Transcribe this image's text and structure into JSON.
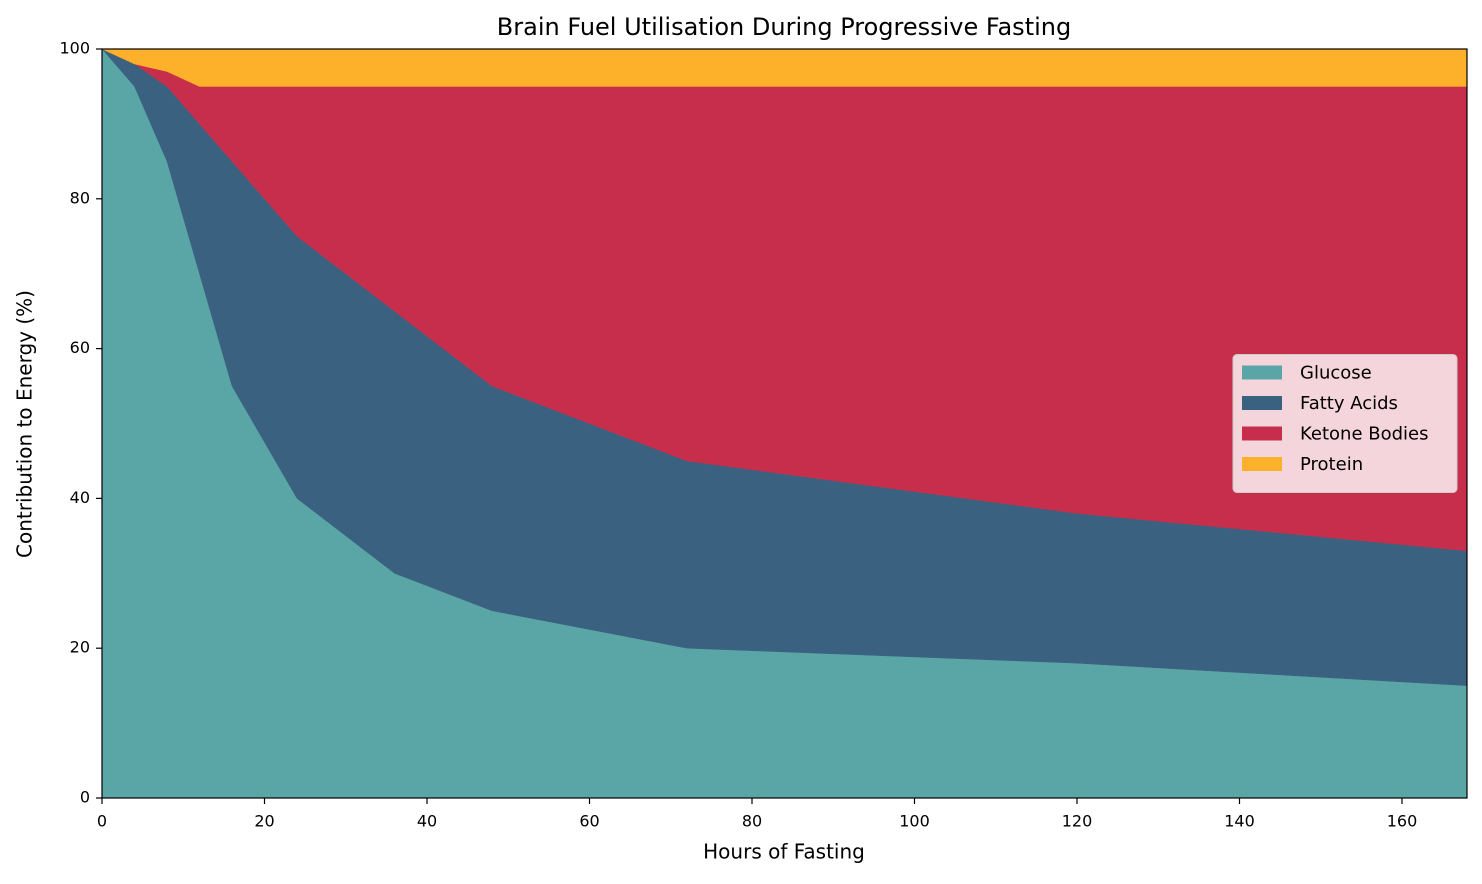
{
  "chart_data": {
    "type": "stacked_area",
    "title": "Brain Fuel Utilisation During Progressive Fasting",
    "x_label": "Hours of Fasting",
    "y_label": "Contribution to Energy (%)",
    "x": [
      0,
      4,
      8,
      12,
      16,
      24,
      36,
      48,
      72,
      120,
      168
    ],
    "series": [
      {
        "name": "Glucose",
        "color": "#5aa6a6",
        "values": [
          100,
          95,
          85,
          70,
          55,
          40,
          30,
          25,
          20,
          18,
          15
        ]
      },
      {
        "name": "Fatty Acids",
        "color": "#3b6180",
        "values": [
          0,
          3,
          10,
          20,
          30,
          35,
          35,
          30,
          25,
          20,
          18
        ]
      },
      {
        "name": "Ketone Bodies",
        "color": "#c72e4c",
        "values": [
          0,
          0,
          2,
          5,
          10,
          20,
          30,
          40,
          50,
          57,
          62
        ]
      },
      {
        "name": "Protein",
        "color": "#fdb12a",
        "values": [
          0,
          2,
          3,
          5,
          5,
          5,
          5,
          5,
          5,
          5,
          5
        ]
      }
    ],
    "xlim": [
      0,
      168
    ],
    "ylim": [
      0,
      100
    ],
    "xticks": [
      0,
      20,
      40,
      60,
      80,
      100,
      120,
      140,
      160
    ],
    "yticks": [
      0,
      20,
      40,
      60,
      80,
      100
    ],
    "grid": false,
    "legend": "right"
  }
}
